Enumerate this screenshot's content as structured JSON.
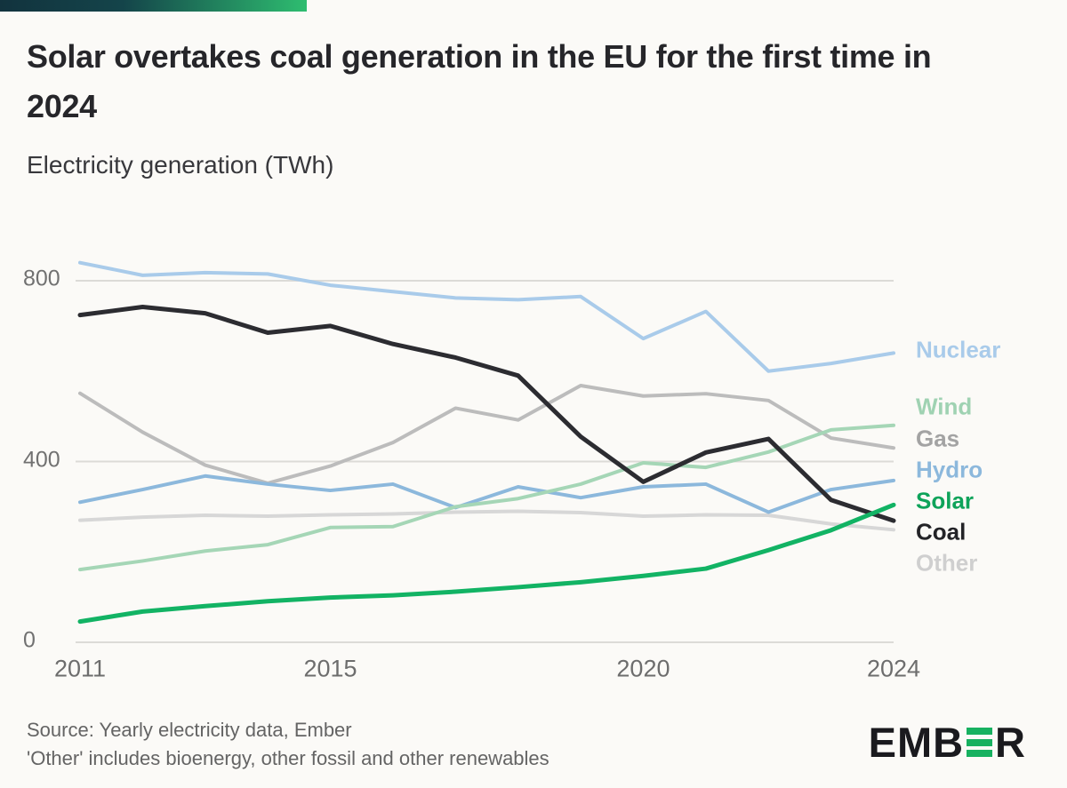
{
  "header": {
    "title": "Solar overtakes coal generation in the EU for the first time in 2024",
    "subtitle": "Electricity generation (TWh)"
  },
  "chart_data": {
    "type": "line",
    "title": "Solar overtakes coal generation in the EU for the first time in 2024",
    "subtitle": "Electricity generation (TWh)",
    "ylabel": "TWh",
    "ylim": [
      0,
      800
    ],
    "grid": "horizontal",
    "legend_position": "right-edge-labels",
    "x": [
      2011,
      2012,
      2013,
      2014,
      2015,
      2016,
      2017,
      2018,
      2019,
      2020,
      2021,
      2022,
      2023,
      2024
    ],
    "x_ticks": [
      {
        "value": 2011,
        "label": "2011"
      },
      {
        "value": 2015,
        "label": "2015"
      },
      {
        "value": 2020,
        "label": "2020"
      },
      {
        "value": 2024,
        "label": "2024"
      }
    ],
    "y_ticks": [
      {
        "value": 800,
        "label": "800"
      },
      {
        "value": 400,
        "label": "400"
      },
      {
        "value": 0,
        "label": "0"
      }
    ],
    "series": [
      {
        "name": "Nuclear",
        "color": "#a9cbea",
        "label_color": "#a9cbea",
        "line_width": 4,
        "values": [
          840,
          812,
          818,
          815,
          790,
          776,
          762,
          758,
          765,
          672,
          732,
          600,
          617,
          640
        ]
      },
      {
        "name": "Wind",
        "color": "#a5d6b6",
        "label_color": "#9fd2b2",
        "line_width": 4,
        "values": [
          161,
          180,
          202,
          216,
          254,
          256,
          300,
          318,
          350,
          397,
          387,
          421,
          470,
          480
        ]
      },
      {
        "name": "Gas",
        "color": "#bcbcbc",
        "label_color": "#a3a3a3",
        "line_width": 4,
        "values": [
          551,
          465,
          392,
          352,
          390,
          442,
          518,
          492,
          568,
          545,
          550,
          535,
          452,
          430
        ]
      },
      {
        "name": "Hydro",
        "color": "#8cb8dc",
        "label_color": "#8cb8dc",
        "line_width": 4,
        "values": [
          310,
          338,
          368,
          350,
          336,
          350,
          298,
          344,
          320,
          344,
          350,
          288,
          338,
          358
        ]
      },
      {
        "name": "Solar",
        "color": "#12b364",
        "label_color": "#0ea35a",
        "line_width": 5,
        "values": [
          46,
          68,
          80,
          91,
          99,
          104,
          112,
          122,
          133,
          147,
          163,
          204,
          248,
          304
        ]
      },
      {
        "name": "Coal",
        "color": "#2c2c31",
        "label_color": "#232327",
        "line_width": 5,
        "values": [
          724,
          742,
          728,
          685,
          700,
          660,
          630,
          590,
          455,
          355,
          420,
          450,
          315,
          269
        ]
      },
      {
        "name": "Other",
        "color": "#d7d7d7",
        "label_color": "#cfcfcf",
        "line_width": 4,
        "values": [
          270,
          277,
          281,
          279,
          282,
          284,
          288,
          290,
          287,
          279,
          282,
          281,
          262,
          249
        ]
      }
    ],
    "draw_order": [
      "Other",
      "Gas",
      "Nuclear",
      "Hydro",
      "Wind",
      "Coal",
      "Solar"
    ]
  },
  "footer": {
    "source_line1": "Source: Yearly electricity data, Ember",
    "source_line2": "'Other' includes bioenergy, other fossil and other renewables",
    "logo": {
      "left": "EMB",
      "right": "R"
    }
  },
  "colors": {
    "accent_green": "#17b160",
    "gradient_start": "#12333e",
    "gradient_end": "#2ebd70",
    "background": "#fbfaf7",
    "gridline": "#dcdbd7"
  }
}
